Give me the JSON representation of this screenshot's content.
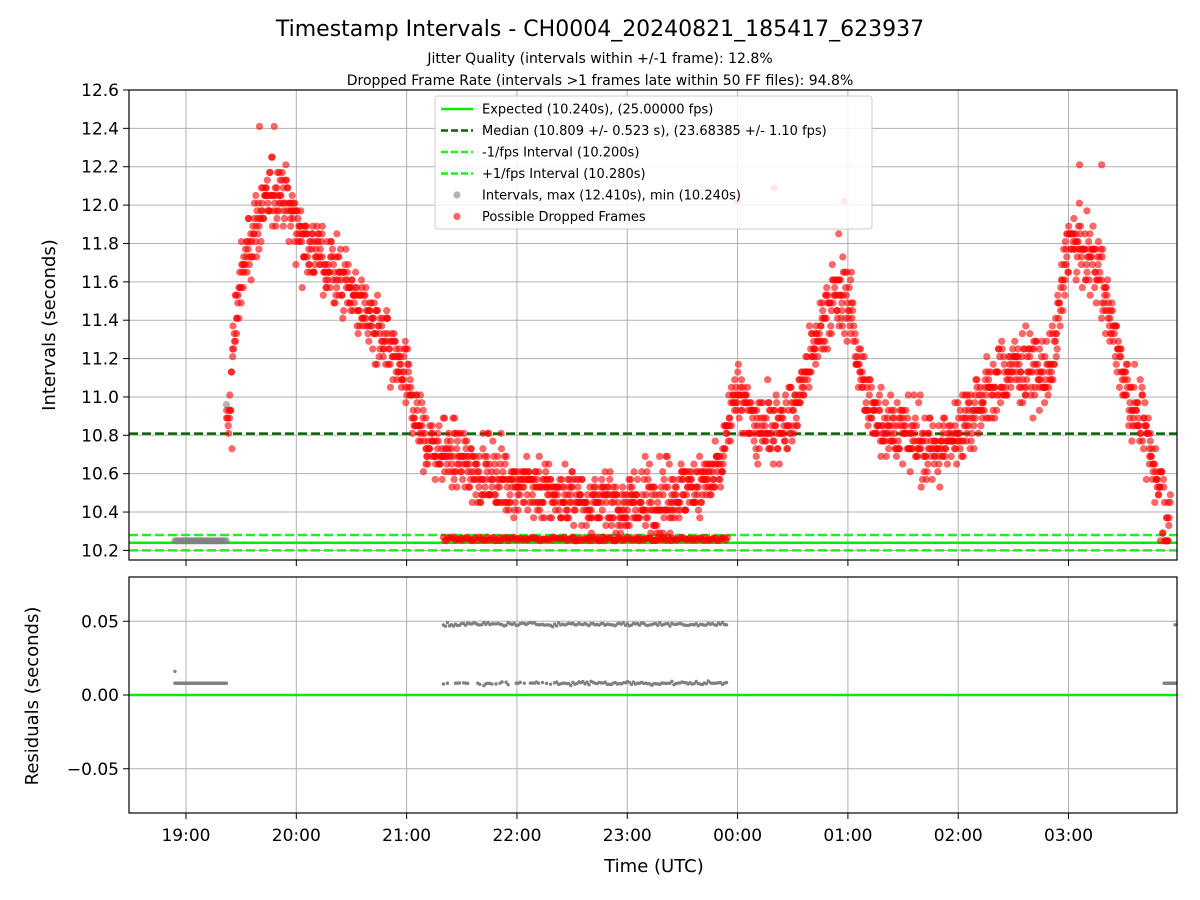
{
  "figure": {
    "title": "Timestamp Intervals - CH0004_20240821_185417_623937",
    "subtitle1": "Jitter Quality (intervals within +/-1 frame): 12.8%",
    "subtitle2": "Dropped Frame Rate (intervals >1 frames late within 50 FF files): 94.8%"
  },
  "colors": {
    "expected": "#00ee00",
    "median": "#006400",
    "interval_band": "#22ee22",
    "normal": "#808080",
    "dropped": "#ff0000",
    "grid": "#b0b0b0"
  },
  "chart_data": [
    {
      "type": "scatter",
      "name": "intervals",
      "ylabel": "Intervals (seconds)",
      "ylim": [
        10.15,
        12.6
      ],
      "y_ticks": [
        "10.2",
        "10.4",
        "10.6",
        "10.8",
        "11.0",
        "11.2",
        "11.4",
        "11.6",
        "11.8",
        "12.0",
        "12.2",
        "12.4",
        "12.6"
      ],
      "grid": true,
      "legend_position": "top-center",
      "reference_lines": [
        {
          "name": "Expected (10.240s), (25.00000 fps)",
          "y": 10.24,
          "style": "solid",
          "color": "#00ee00"
        },
        {
          "name": "Median (10.809 +/- 0.523 s), (23.68385 +/- 1.10 fps)",
          "y": 10.809,
          "style": "dashed",
          "color": "#006400"
        },
        {
          "name": "-1/fps Interval (10.200s)",
          "y": 10.2,
          "style": "dashed",
          "color": "#22ee22"
        },
        {
          "name": "+1/fps Interval (10.280s)",
          "y": 10.28,
          "style": "dashed",
          "color": "#22ee22"
        }
      ],
      "series": [
        {
          "name": "Intervals, max (12.410s), min (10.240s)",
          "color": "#808080"
        },
        {
          "name": "Possible Dropped Frames",
          "color": "#ff0000"
        }
      ],
      "normal_points": [
        {
          "t": "18:54",
          "y": 10.25
        },
        {
          "t": "19:00",
          "y": 10.25
        },
        {
          "t": "19:06",
          "y": 10.25
        },
        {
          "t": "19:12",
          "y": 10.25
        },
        {
          "t": "19:18",
          "y": 10.25
        },
        {
          "t": "19:22",
          "y": 10.25
        },
        {
          "t": "19:22",
          "y": 10.96
        }
      ],
      "dropped_trend": [
        {
          "t": "19:22",
          "y": 10.75
        },
        {
          "t": "19:27",
          "y": 11.45
        },
        {
          "t": "19:35",
          "y": 11.85
        },
        {
          "t": "19:50",
          "y": 12.1
        },
        {
          "t": "20:05",
          "y": 11.8
        },
        {
          "t": "20:30",
          "y": 11.55
        },
        {
          "t": "20:45",
          "y": 11.3
        },
        {
          "t": "21:00",
          "y": 11.05
        },
        {
          "t": "21:10",
          "y": 10.75
        },
        {
          "t": "21:40",
          "y": 10.6
        },
        {
          "t": "22:30",
          "y": 10.45
        },
        {
          "t": "23:00",
          "y": 10.42
        },
        {
          "t": "23:30",
          "y": 10.5
        },
        {
          "t": "23:50",
          "y": 10.6
        },
        {
          "t": "00:00",
          "y": 11.05
        },
        {
          "t": "00:10",
          "y": 10.8
        },
        {
          "t": "00:30",
          "y": 10.9
        },
        {
          "t": "00:50",
          "y": 11.5
        },
        {
          "t": "01:00",
          "y": 11.5
        },
        {
          "t": "01:10",
          "y": 10.95
        },
        {
          "t": "01:30",
          "y": 10.8
        },
        {
          "t": "01:50",
          "y": 10.7
        },
        {
          "t": "02:10",
          "y": 10.95
        },
        {
          "t": "02:30",
          "y": 11.15
        },
        {
          "t": "02:50",
          "y": 11.1
        },
        {
          "t": "03:00",
          "y": 11.8
        },
        {
          "t": "03:15",
          "y": 11.7
        },
        {
          "t": "03:30",
          "y": 11.1
        },
        {
          "t": "03:45",
          "y": 10.7
        },
        {
          "t": "03:55",
          "y": 10.3
        }
      ],
      "dropped_outliers": [
        {
          "t": "19:40",
          "y": 12.41
        },
        {
          "t": "19:48",
          "y": 12.41
        },
        {
          "t": "00:00",
          "y": 12.02
        },
        {
          "t": "00:20",
          "y": 12.09
        },
        {
          "t": "00:58",
          "y": 12.02
        },
        {
          "t": "03:06",
          "y": 12.21
        },
        {
          "t": "03:18",
          "y": 12.21
        },
        {
          "t": "00:55",
          "y": 11.85
        },
        {
          "t": "19:25",
          "y": 10.73
        }
      ]
    },
    {
      "type": "scatter",
      "name": "residuals",
      "xlabel": "Time (UTC)",
      "ylabel": "Residuals (seconds)",
      "ylim": [
        -0.08,
        0.08
      ],
      "y_ticks": [
        "−0.05",
        "0.00",
        "0.05"
      ],
      "grid": true,
      "zero_line": {
        "y": 0.0,
        "color": "#00ee00"
      },
      "clusters": [
        {
          "t_start": "18:54",
          "t_end": "19:22",
          "y": 0.008
        },
        {
          "t_start": "21:20",
          "t_end": "23:55",
          "y": 0.008
        },
        {
          "t_start": "21:20",
          "t_end": "23:55",
          "y": 0.048
        },
        {
          "t_start": "03:52",
          "t_end": "03:59",
          "y": 0.008
        },
        {
          "t_start": "03:58",
          "t_end": "03:59",
          "y": 0.048
        }
      ],
      "extra_points": [
        {
          "t": "18:54",
          "y": 0.016
        }
      ]
    }
  ],
  "x_axis": {
    "xlim": [
      "18:29",
      "03:59"
    ],
    "ticks": [
      "19:00",
      "20:00",
      "21:00",
      "22:00",
      "23:00",
      "00:00",
      "01:00",
      "02:00",
      "03:00"
    ]
  }
}
